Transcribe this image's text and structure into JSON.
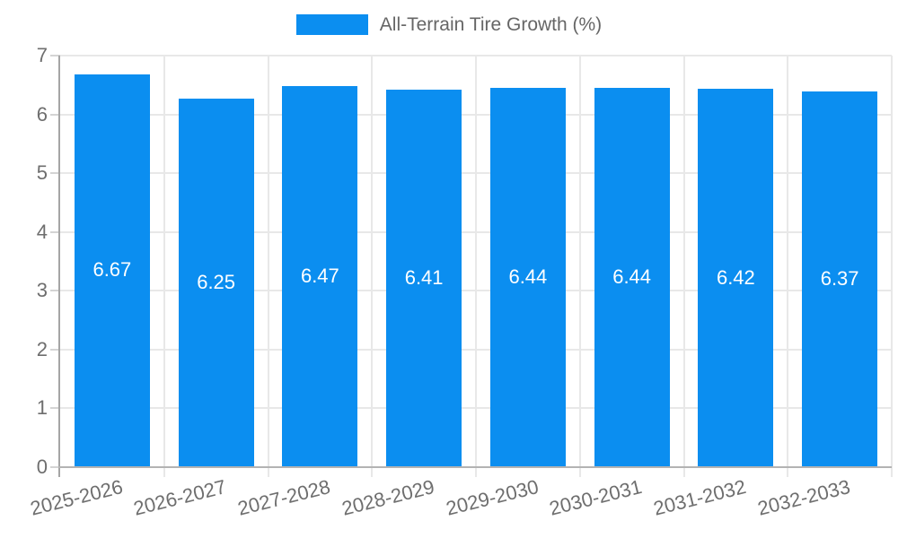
{
  "legend": {
    "label": "All-Terrain Tire Growth (%)"
  },
  "chart_data": {
    "type": "bar",
    "title": "All-Terrain Tire Growth (%)",
    "series_name": "All-Terrain Tire Growth (%)",
    "categories": [
      "2025-2026",
      "2026-2027",
      "2027-2028",
      "2028-2029",
      "2029-2030",
      "2030-2031",
      "2031-2032",
      "2032-2033"
    ],
    "values": [
      6.67,
      6.25,
      6.47,
      6.41,
      6.44,
      6.44,
      6.42,
      6.37
    ],
    "value_labels": [
      "6.67",
      "6.25",
      "6.47",
      "6.41",
      "6.44",
      "6.44",
      "6.42",
      "6.37"
    ],
    "y_ticks": [
      "0",
      "1",
      "2",
      "3",
      "4",
      "5",
      "6",
      "7"
    ],
    "ylim": [
      0,
      7
    ],
    "xlabel": "",
    "ylabel": "",
    "legend_position": "top",
    "grid": true,
    "bar_value_label_position": "center",
    "x_label_rotation_deg": -14
  },
  "colors": {
    "bar": "#0b8ef0",
    "grid": "#e8e8e8",
    "axis_y": "#a5a5a5",
    "axis_x": "#b3b3b3",
    "tick_mark": "#d4d4d4",
    "tick_text": "#6e6e6e",
    "legend_text": "#666666",
    "bar_label_text": "#ffffff",
    "background": "#ffffff"
  }
}
